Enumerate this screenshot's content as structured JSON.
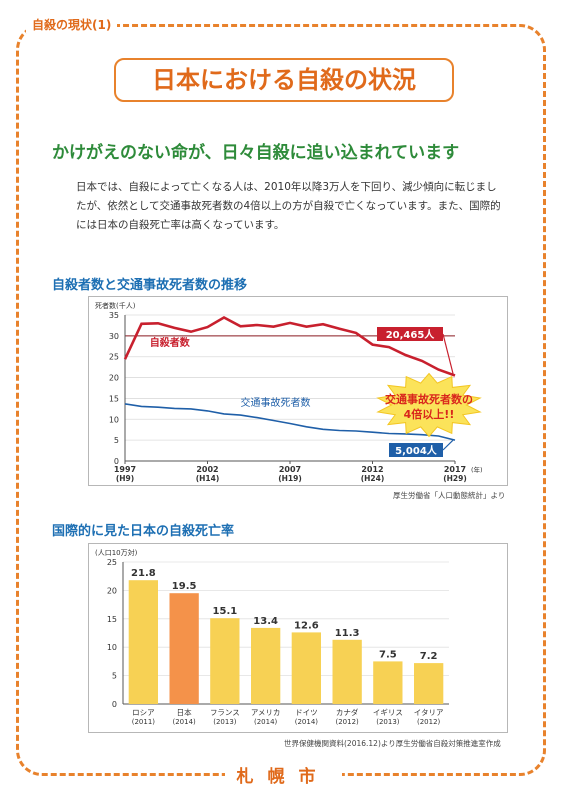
{
  "section_tag": "自殺の現状(1)",
  "title": "日本における自殺の状況",
  "subtitle": "かけがえのない命が、日々自殺に追い込まれています",
  "intro": "日本では、自殺によって亡くなる人は、2010年以降3万人を下回り、減少傾向に転じましたが、依然として交通事故死者数の4倍以上の方が自殺で亡くなっています。また、国際的には日本の自殺死亡率は高くなっています。",
  "colors": {
    "accent": "#e8822c",
    "heading": "#1d6fb3",
    "subhead": "#2e8b3a",
    "suicide_line": "#c8202e",
    "traffic_line": "#1f5fa8",
    "bar": "#f7d154",
    "bar_highlight": "#f4924a"
  },
  "chart_data": [
    {
      "type": "line",
      "title": "自殺者数と交通事故死者数の推移",
      "ylabel": "死者数(千人)",
      "ylim": [
        0,
        35
      ],
      "yticks": [
        0,
        5,
        10,
        15,
        20,
        25,
        30,
        35
      ],
      "x": [
        1997,
        1998,
        1999,
        2000,
        2001,
        2002,
        2003,
        2004,
        2005,
        2006,
        2007,
        2008,
        2009,
        2010,
        2011,
        2012,
        2013,
        2014,
        2015,
        2016,
        2017
      ],
      "xtick_labels": [
        {
          "year": 1997,
          "label": "1997",
          "era": "(H9)"
        },
        {
          "year": 2002,
          "label": "2002",
          "era": "(H14)"
        },
        {
          "year": 2007,
          "label": "2007",
          "era": "(H19)"
        },
        {
          "year": 2012,
          "label": "2012",
          "era": "(H24)"
        },
        {
          "year": 2017,
          "label": "2017",
          "era": "(H29)"
        }
      ],
      "x_unit": "(年)",
      "series": [
        {
          "name": "自殺者数",
          "values": [
            24.4,
            32.9,
            33.0,
            31.9,
            31.0,
            32.1,
            34.4,
            32.3,
            32.6,
            32.2,
            33.1,
            32.2,
            32.8,
            31.7,
            30.7,
            27.9,
            27.3,
            25.4,
            24.0,
            21.9,
            20.5
          ]
        },
        {
          "name": "交通事故死者数",
          "values": [
            13.7,
            13.1,
            12.9,
            12.6,
            12.5,
            12.0,
            11.3,
            11.0,
            10.4,
            9.7,
            9.0,
            8.2,
            7.6,
            7.3,
            7.2,
            6.9,
            6.6,
            6.5,
            6.3,
            6.0,
            5.0
          ]
        }
      ],
      "reference_line": 30,
      "annotations": {
        "suicide_end": "20,465人",
        "traffic_end": "5,004人",
        "callout_line1": "交通事故死者数の",
        "callout_line2": "4倍以上!!"
      },
      "source": "厚生労働省「人口動態統計」より"
    },
    {
      "type": "bar",
      "title": "国際的に見た日本の自殺死亡率",
      "ylabel": "(人口10万対)",
      "ylim": [
        0,
        25
      ],
      "yticks": [
        0,
        5,
        10,
        15,
        20,
        25
      ],
      "categories": [
        "ロシア",
        "日本",
        "フランス",
        "アメリカ",
        "ドイツ",
        "カナダ",
        "イギリス",
        "イタリア"
      ],
      "years": [
        "(2011)",
        "(2014)",
        "(2013)",
        "(2014)",
        "(2014)",
        "(2012)",
        "(2013)",
        "(2012)"
      ],
      "values": [
        21.8,
        19.5,
        15.1,
        13.4,
        12.6,
        11.3,
        7.5,
        7.2
      ],
      "value_labels": [
        "21.8",
        "19.5",
        "15.1",
        "13.4",
        "12.6",
        "11.3",
        "7.5",
        "7.2"
      ],
      "highlight": "日本",
      "source": "世界保健機関資料(2016.12)より厚生労働省自殺対策推進室作成"
    }
  ],
  "footer": "札幌市"
}
